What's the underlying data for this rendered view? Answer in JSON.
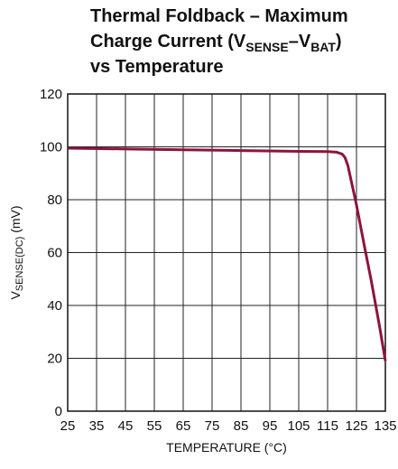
{
  "chart_data": {
    "type": "line",
    "title": [
      [
        "Thermal Foldback – Maximum"
      ],
      [
        "Charge Current (V",
        "SENSE",
        "–V",
        "BAT",
        ")"
      ],
      [
        "vs Temperature"
      ]
    ],
    "xlabel": "TEMPERATURE (°C)",
    "ylabel": [
      "V",
      "SENSE(DC)",
      " (mV)"
    ],
    "x": [
      25,
      45,
      65,
      85,
      105,
      115,
      118,
      120,
      121,
      122,
      123,
      125,
      128,
      130,
      133,
      135
    ],
    "values": [
      99.5,
      99.2,
      98.9,
      98.6,
      98.3,
      98.2,
      98.0,
      97.3,
      96,
      93,
      88,
      78,
      61,
      50,
      32,
      19
    ],
    "color": "#8b1538",
    "xlim": [
      25,
      135
    ],
    "xticks": [
      25,
      35,
      45,
      55,
      65,
      75,
      85,
      95,
      105,
      115,
      125,
      135
    ],
    "ylim": [
      0,
      120
    ],
    "yticks": [
      0,
      20,
      40,
      60,
      80,
      100,
      120
    ],
    "grid": true
  }
}
